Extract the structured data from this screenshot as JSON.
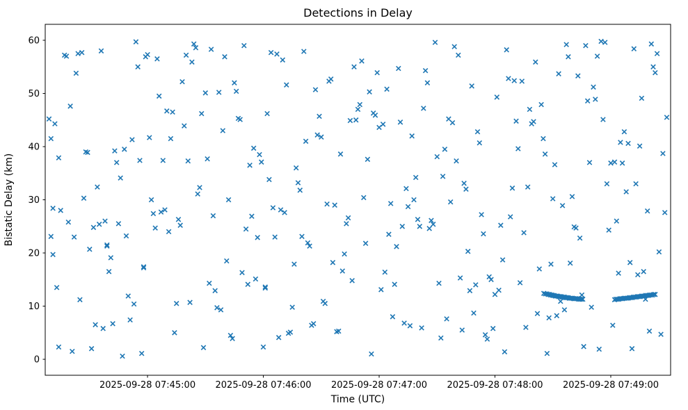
{
  "chart_data": {
    "type": "scatter",
    "title": "Detections in Delay",
    "xlabel": "Time (UTC)",
    "ylabel": "Bistatic Delay (km)",
    "marker": "x",
    "marker_color": "#1f77b4",
    "legend": "none",
    "grid": false,
    "x_unit": "seconds since 2025-09-28 07:44:00 UTC",
    "xlim": [
      7,
      331
    ],
    "ylim": [
      -3,
      63
    ],
    "x_ticks": [
      {
        "t": 60,
        "label": "2025-09-28 07:45:00"
      },
      {
        "t": 120,
        "label": "2025-09-28 07:46:00"
      },
      {
        "t": 180,
        "label": "2025-09-28 07:47:00"
      },
      {
        "t": 240,
        "label": "2025-09-28 07:48:00"
      },
      {
        "t": 300,
        "label": "2025-09-28 07:49:00"
      }
    ],
    "y_ticks": [
      {
        "v": 0,
        "label": "0"
      },
      {
        "v": 10,
        "label": "10"
      },
      {
        "v": 20,
        "label": "20"
      },
      {
        "v": 30,
        "label": "30"
      },
      {
        "v": 40,
        "label": "40"
      },
      {
        "v": 50,
        "label": "50"
      },
      {
        "v": 60,
        "label": "60"
      }
    ],
    "points": [
      [
        9,
        45.2
      ],
      [
        10,
        41.5
      ],
      [
        10,
        23.1
      ],
      [
        11,
        28.4
      ],
      [
        11,
        19.7
      ],
      [
        12,
        44.3
      ],
      [
        13,
        13.5
      ],
      [
        14,
        37.9
      ],
      [
        14,
        2.3
      ],
      [
        15,
        28.0
      ],
      [
        17,
        57.2
      ],
      [
        18,
        57.0
      ],
      [
        19,
        25.8
      ],
      [
        20,
        47.6
      ],
      [
        21,
        1.5
      ],
      [
        22,
        23.0
      ],
      [
        23,
        53.8
      ],
      [
        24,
        57.5
      ],
      [
        25,
        11.2
      ],
      [
        26,
        57.7
      ],
      [
        27,
        30.3
      ],
      [
        28,
        39.0
      ],
      [
        29,
        38.9
      ],
      [
        30,
        20.7
      ],
      [
        31,
        2.0
      ],
      [
        32,
        24.8
      ],
      [
        33,
        6.5
      ],
      [
        34,
        32.4
      ],
      [
        35,
        25.4
      ],
      [
        36,
        58.0
      ],
      [
        37,
        5.8
      ],
      [
        38,
        26.0
      ],
      [
        39,
        21.5
      ],
      [
        39,
        21.3
      ],
      [
        40,
        16.5
      ],
      [
        41,
        19.1
      ],
      [
        42,
        6.7
      ],
      [
        43,
        39.2
      ],
      [
        44,
        37.0
      ],
      [
        45,
        25.5
      ],
      [
        46,
        34.1
      ],
      [
        47,
        0.6
      ],
      [
        48,
        39.5
      ],
      [
        49,
        23.2
      ],
      [
        50,
        11.9
      ],
      [
        51,
        7.4
      ],
      [
        52,
        41.3
      ],
      [
        53,
        10.4
      ],
      [
        54,
        59.7
      ],
      [
        55,
        55.0
      ],
      [
        56,
        37.4
      ],
      [
        57,
        1.1
      ],
      [
        58,
        17.4
      ],
      [
        58,
        17.2
      ],
      [
        59,
        56.9
      ],
      [
        60,
        57.3
      ],
      [
        61,
        41.7
      ],
      [
        62,
        30.0
      ],
      [
        63,
        27.4
      ],
      [
        64,
        24.7
      ],
      [
        65,
        56.5
      ],
      [
        66,
        49.5
      ],
      [
        67,
        27.7
      ],
      [
        68,
        37.4
      ],
      [
        69,
        28.1
      ],
      [
        70,
        46.7
      ],
      [
        71,
        24.0
      ],
      [
        72,
        41.5
      ],
      [
        73,
        46.5
      ],
      [
        74,
        5.0
      ],
      [
        75,
        10.5
      ],
      [
        76,
        26.3
      ],
      [
        77,
        25.2
      ],
      [
        78,
        52.2
      ],
      [
        79,
        43.9
      ],
      [
        80,
        57.2
      ],
      [
        81,
        37.3
      ],
      [
        82,
        10.7
      ],
      [
        83,
        55.9
      ],
      [
        84,
        59.3
      ],
      [
        85,
        58.6
      ],
      [
        86,
        31.1
      ],
      [
        87,
        32.3
      ],
      [
        88,
        46.2
      ],
      [
        89,
        2.2
      ],
      [
        90,
        50.1
      ],
      [
        91,
        37.7
      ],
      [
        92,
        14.3
      ],
      [
        93,
        58.3
      ],
      [
        94,
        27.0
      ],
      [
        95,
        12.9
      ],
      [
        96,
        9.7
      ],
      [
        97,
        50.2
      ],
      [
        98,
        9.3
      ],
      [
        99,
        43.0
      ],
      [
        100,
        56.9
      ],
      [
        101,
        18.5
      ],
      [
        102,
        30.0
      ],
      [
        103,
        4.5
      ],
      [
        104,
        3.9
      ],
      [
        105,
        52.0
      ],
      [
        106,
        50.4
      ],
      [
        107,
        45.3
      ],
      [
        108,
        45.1
      ],
      [
        109,
        16.3
      ],
      [
        110,
        59.0
      ],
      [
        111,
        24.5
      ],
      [
        112,
        14.1
      ],
      [
        113,
        36.5
      ],
      [
        114,
        26.9
      ],
      [
        115,
        39.7
      ],
      [
        116,
        15.1
      ],
      [
        117,
        22.9
      ],
      [
        118,
        38.5
      ],
      [
        119,
        37.1
      ],
      [
        120,
        2.3
      ],
      [
        121,
        13.6
      ],
      [
        121,
        13.4
      ],
      [
        122,
        46.2
      ],
      [
        123,
        33.8
      ],
      [
        124,
        57.7
      ],
      [
        125,
        28.5
      ],
      [
        126,
        23.0
      ],
      [
        127,
        57.4
      ],
      [
        128,
        4.1
      ],
      [
        129,
        28.1
      ],
      [
        130,
        56.3
      ],
      [
        131,
        27.6
      ],
      [
        132,
        51.6
      ],
      [
        133,
        4.9
      ],
      [
        134,
        5.1
      ],
      [
        135,
        9.8
      ],
      [
        136,
        17.9
      ],
      [
        137,
        36.0
      ],
      [
        138,
        33.2
      ],
      [
        139,
        31.8
      ],
      [
        140,
        23.1
      ],
      [
        141,
        57.9
      ],
      [
        142,
        41.0
      ],
      [
        143,
        21.9
      ],
      [
        144,
        21.3
      ],
      [
        145,
        6.4
      ],
      [
        146,
        6.7
      ],
      [
        147,
        50.7
      ],
      [
        148,
        42.2
      ],
      [
        149,
        45.7
      ],
      [
        150,
        41.8
      ],
      [
        151,
        10.9
      ],
      [
        152,
        10.5
      ],
      [
        153,
        29.2
      ],
      [
        154,
        52.3
      ],
      [
        155,
        52.7
      ],
      [
        156,
        18.2
      ],
      [
        157,
        29.0
      ],
      [
        158,
        5.2
      ],
      [
        159,
        5.3
      ],
      [
        160,
        38.6
      ],
      [
        161,
        16.6
      ],
      [
        162,
        19.8
      ],
      [
        163,
        25.5
      ],
      [
        164,
        26.6
      ],
      [
        165,
        44.9
      ],
      [
        166,
        14.8
      ],
      [
        167,
        55.0
      ],
      [
        168,
        45.0
      ],
      [
        169,
        47.0
      ],
      [
        170,
        47.9
      ],
      [
        171,
        56.1
      ],
      [
        172,
        30.4
      ],
      [
        173,
        21.8
      ],
      [
        174,
        37.6
      ],
      [
        175,
        50.3
      ],
      [
        176,
        1.0
      ],
      [
        177,
        46.3
      ],
      [
        178,
        45.9
      ],
      [
        179,
        53.9
      ],
      [
        180,
        43.6
      ],
      [
        181,
        13.1
      ],
      [
        182,
        44.2
      ],
      [
        183,
        16.4
      ],
      [
        184,
        50.8
      ],
      [
        185,
        23.5
      ],
      [
        186,
        29.3
      ],
      [
        187,
        8.0
      ],
      [
        188,
        14.1
      ],
      [
        189,
        21.2
      ],
      [
        190,
        54.7
      ],
      [
        191,
        44.6
      ],
      [
        192,
        25.0
      ],
      [
        193,
        6.8
      ],
      [
        194,
        32.1
      ],
      [
        195,
        28.7
      ],
      [
        196,
        6.3
      ],
      [
        197,
        42.0
      ],
      [
        198,
        30.0
      ],
      [
        199,
        34.2
      ],
      [
        200,
        26.3
      ],
      [
        201,
        25.0
      ],
      [
        202,
        5.9
      ],
      [
        203,
        47.2
      ],
      [
        204,
        54.3
      ],
      [
        205,
        52.0
      ],
      [
        206,
        24.6
      ],
      [
        207,
        26.1
      ],
      [
        208,
        25.4
      ],
      [
        209,
        59.6
      ],
      [
        210,
        38.1
      ],
      [
        211,
        14.3
      ],
      [
        212,
        4.0
      ],
      [
        213,
        34.4
      ],
      [
        214,
        39.5
      ],
      [
        215,
        7.6
      ],
      [
        216,
        45.2
      ],
      [
        217,
        29.6
      ],
      [
        218,
        44.5
      ],
      [
        219,
        58.8
      ],
      [
        220,
        37.3
      ],
      [
        221,
        57.2
      ],
      [
        222,
        15.3
      ],
      [
        223,
        5.5
      ],
      [
        224,
        33.1
      ],
      [
        225,
        32.0
      ],
      [
        226,
        20.3
      ],
      [
        227,
        12.9
      ],
      [
        228,
        51.4
      ],
      [
        229,
        8.7
      ],
      [
        230,
        14.0
      ],
      [
        231,
        42.8
      ],
      [
        232,
        40.7
      ],
      [
        233,
        27.2
      ],
      [
        234,
        23.6
      ],
      [
        235,
        4.6
      ],
      [
        236,
        3.8
      ],
      [
        237,
        15.5
      ],
      [
        238,
        15.0
      ],
      [
        239,
        5.8
      ],
      [
        240,
        12.2
      ],
      [
        241,
        49.3
      ],
      [
        242,
        13.0
      ],
      [
        243,
        25.2
      ],
      [
        244,
        18.7
      ],
      [
        245,
        1.4
      ],
      [
        246,
        58.2
      ],
      [
        247,
        52.8
      ],
      [
        248,
        26.8
      ],
      [
        249,
        32.2
      ],
      [
        250,
        52.4
      ],
      [
        251,
        44.8
      ],
      [
        252,
        39.6
      ],
      [
        253,
        14.4
      ],
      [
        254,
        52.3
      ],
      [
        255,
        23.8
      ],
      [
        256,
        6.0
      ],
      [
        257,
        32.4
      ],
      [
        258,
        47.0
      ],
      [
        259,
        44.3
      ],
      [
        260,
        44.7
      ],
      [
        261,
        55.9
      ],
      [
        262,
        8.6
      ],
      [
        263,
        17.0
      ],
      [
        264,
        47.9
      ],
      [
        265,
        41.5
      ],
      [
        266,
        38.6
      ],
      [
        267,
        1.1
      ],
      [
        268,
        7.8
      ],
      [
        269,
        17.9
      ],
      [
        270,
        30.2
      ],
      [
        271,
        36.6
      ],
      [
        272,
        8.2
      ],
      [
        273,
        53.7
      ],
      [
        274,
        10.9
      ],
      [
        275,
        28.9
      ],
      [
        276,
        9.3
      ],
      [
        277,
        59.2
      ],
      [
        278,
        56.9
      ],
      [
        279,
        18.1
      ],
      [
        280,
        30.6
      ],
      [
        281,
        24.9
      ],
      [
        282,
        24.7
      ],
      [
        283,
        53.3
      ],
      [
        284,
        22.8
      ],
      [
        285,
        12.1
      ],
      [
        286,
        2.4
      ],
      [
        287,
        59.0
      ],
      [
        288,
        48.6
      ],
      [
        289,
        37.0
      ],
      [
        290,
        9.8
      ],
      [
        291,
        51.2
      ],
      [
        292,
        48.9
      ],
      [
        293,
        57.0
      ],
      [
        294,
        1.9
      ],
      [
        295,
        59.8
      ],
      [
        296,
        45.1
      ],
      [
        297,
        59.6
      ],
      [
        298,
        33.0
      ],
      [
        299,
        24.3
      ],
      [
        300,
        36.9
      ],
      [
        301,
        6.4
      ],
      [
        302,
        37.1
      ],
      [
        303,
        26.0
      ],
      [
        304,
        16.2
      ],
      [
        305,
        40.8
      ],
      [
        306,
        36.9
      ],
      [
        307,
        42.8
      ],
      [
        308,
        31.5
      ],
      [
        309,
        40.6
      ],
      [
        310,
        18.2
      ],
      [
        311,
        2.0
      ],
      [
        312,
        58.4
      ],
      [
        313,
        33.0
      ],
      [
        314,
        15.9
      ],
      [
        315,
        40.1
      ],
      [
        316,
        49.1
      ],
      [
        317,
        16.5
      ],
      [
        318,
        11.3
      ],
      [
        319,
        27.9
      ],
      [
        320,
        5.3
      ],
      [
        321,
        59.3
      ],
      [
        322,
        55.0
      ],
      [
        323,
        53.9
      ],
      [
        324,
        57.5
      ],
      [
        325,
        20.2
      ],
      [
        326,
        4.7
      ],
      [
        327,
        38.7
      ],
      [
        328,
        27.6
      ],
      [
        329,
        45.5
      ],
      [
        265.3,
        12.4
      ],
      [
        266.1,
        12.3
      ],
      [
        266.9,
        12.3
      ],
      [
        267.6,
        12.2
      ],
      [
        268.2,
        12.2
      ],
      [
        268.8,
        12.1
      ],
      [
        269.4,
        12.1
      ],
      [
        270.0,
        12.0
      ],
      [
        270.6,
        12.0
      ],
      [
        271.2,
        11.9
      ],
      [
        271.8,
        11.9
      ],
      [
        272.4,
        11.9
      ],
      [
        273.0,
        11.8
      ],
      [
        273.6,
        11.8
      ],
      [
        274.2,
        11.8
      ],
      [
        274.8,
        11.7
      ],
      [
        275.4,
        11.7
      ],
      [
        276.0,
        11.7
      ],
      [
        276.6,
        11.6
      ],
      [
        277.2,
        11.6
      ],
      [
        277.8,
        11.6
      ],
      [
        278.4,
        11.5
      ],
      [
        279.0,
        11.5
      ],
      [
        279.6,
        11.5
      ],
      [
        280.2,
        11.5
      ],
      [
        280.8,
        11.4
      ],
      [
        281.4,
        11.4
      ],
      [
        282.0,
        11.4
      ],
      [
        282.7,
        11.4
      ],
      [
        283.4,
        11.3
      ],
      [
        284.1,
        11.3
      ],
      [
        284.8,
        11.3
      ],
      [
        285.5,
        11.3
      ],
      [
        302.0,
        11.2
      ],
      [
        302.7,
        11.3
      ],
      [
        303.4,
        11.3
      ],
      [
        304.1,
        11.3
      ],
      [
        304.8,
        11.4
      ],
      [
        305.5,
        11.4
      ],
      [
        306.2,
        11.4
      ],
      [
        306.9,
        11.5
      ],
      [
        307.6,
        11.5
      ],
      [
        308.3,
        11.5
      ],
      [
        309.0,
        11.5
      ],
      [
        309.7,
        11.6
      ],
      [
        310.4,
        11.6
      ],
      [
        311.1,
        11.6
      ],
      [
        311.8,
        11.7
      ],
      [
        312.5,
        11.7
      ],
      [
        313.2,
        11.7
      ],
      [
        313.9,
        11.8
      ],
      [
        314.6,
        11.8
      ],
      [
        315.3,
        11.8
      ],
      [
        316.0,
        11.9
      ],
      [
        316.7,
        11.9
      ],
      [
        317.4,
        11.9
      ],
      [
        318.1,
        12.0
      ],
      [
        318.8,
        12.0
      ],
      [
        319.5,
        12.0
      ],
      [
        320.2,
        12.1
      ],
      [
        320.9,
        12.1
      ],
      [
        321.6,
        12.1
      ],
      [
        322.3,
        12.2
      ],
      [
        323.0,
        12.2
      ]
    ]
  }
}
